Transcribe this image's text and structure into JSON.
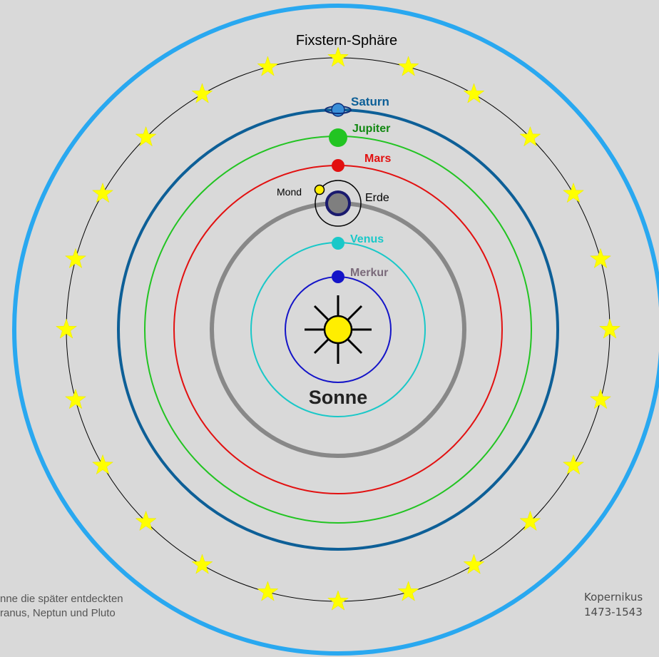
{
  "sphere_label": "Fixstern-Sphäre",
  "sun_label": "Sonne",
  "planets": {
    "saturn": "Saturn",
    "jupiter": "Jupiter",
    "mars": "Mars",
    "earth": "Erde",
    "moon": "Mond",
    "venus": "Venus",
    "mercury": "Merkur"
  },
  "note": {
    "line1": "nne die später entdeckten",
    "line2": "ranus, Neptun und Pluto"
  },
  "credit": {
    "name": "Kopernikus",
    "years": "1473-1543"
  },
  "colors": {
    "background": "#d9d9d9",
    "outer_sphere": "#29a8f0",
    "saturn": "#0d5f97",
    "jupiter": "#22c422",
    "mars": "#e21010",
    "venus": "#19c8c8",
    "mercury": "#1414c8",
    "earth_orbit": "#888888",
    "sun": "#ffee00",
    "star": "#ffff00"
  }
}
